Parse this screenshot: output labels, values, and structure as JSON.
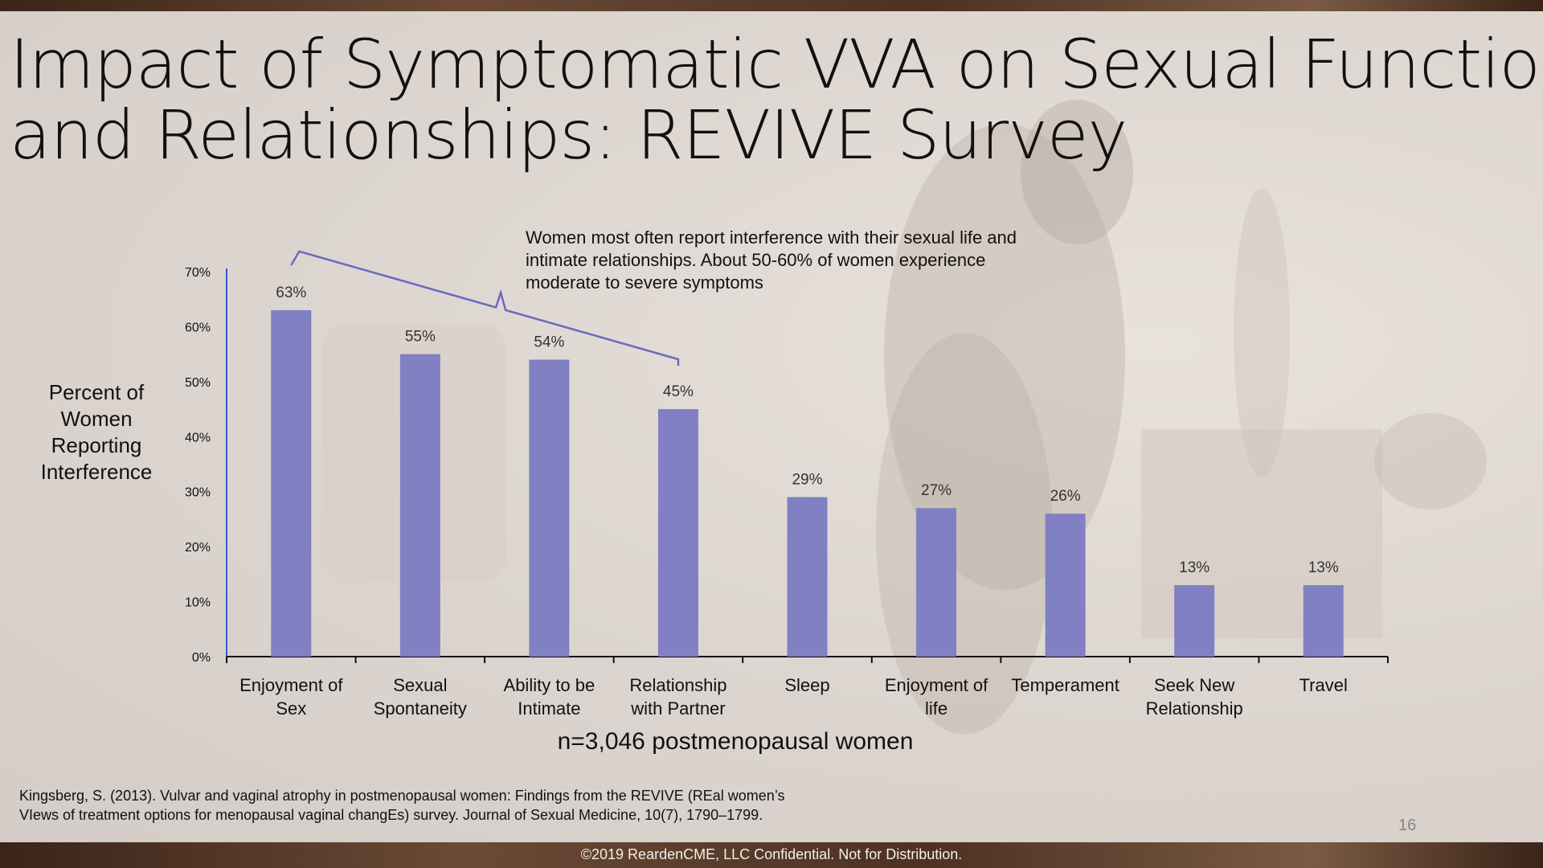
{
  "title_lines": [
    "Impact of Symptomatic VVA on Sexual Function",
    "and Relationships: REVIVE Survey"
  ],
  "callout_text": "Women most often report interference with their sexual life and intimate relationships. About 50-60% of women experience moderate to severe symptoms",
  "ylabel_lines": [
    "Percent of",
    "Women",
    "Reporting",
    "Interference"
  ],
  "sample_note": "n=3,046 postmenopausal women",
  "citation_lines": [
    "Kingsberg, S. (2013). Vulvar and vaginal atrophy in postmenopausal women: Findings from the REVIVE (REal women’s",
    "VIews of treatment options for menopausal vaginal changEs) survey. Journal of Sexual Medicine, 10(7), 1790–1799."
  ],
  "page_number": "16",
  "footer": "©2019 ReardenCME, LLC  Confidential. Not for Distribution.",
  "colors": {
    "bar": "#8080c2",
    "axis": "#2f5fd0",
    "bracket": "#6a6ac0"
  },
  "chart_data": {
    "type": "bar",
    "title": "",
    "xlabel": "",
    "ylabel": "Percent of Women Reporting Interference",
    "categories": [
      [
        "Enjoyment of",
        "Sex"
      ],
      [
        "Sexual",
        "Spontaneity"
      ],
      [
        "Ability to be",
        "Intimate"
      ],
      [
        "Relationship",
        "with Partner"
      ],
      [
        "Sleep"
      ],
      [
        "Enjoyment of",
        "life"
      ],
      [
        "Temperament"
      ],
      [
        "Seek New",
        "Relationship"
      ],
      [
        "Travel"
      ]
    ],
    "values": [
      63,
      55,
      54,
      45,
      29,
      27,
      26,
      13,
      13
    ],
    "value_labels": [
      "63%",
      "55%",
      "54%",
      "45%",
      "29%",
      "27%",
      "26%",
      "13%",
      "13%"
    ],
    "ylim": [
      0,
      70
    ],
    "yticks": [
      0,
      10,
      20,
      30,
      40,
      50,
      60,
      70
    ],
    "ytick_labels": [
      "0%",
      "10%",
      "20%",
      "30%",
      "40%",
      "50%",
      "60%",
      "70%"
    ],
    "grid": false,
    "legend": "none",
    "bracket_categories": [
      0,
      3
    ]
  }
}
